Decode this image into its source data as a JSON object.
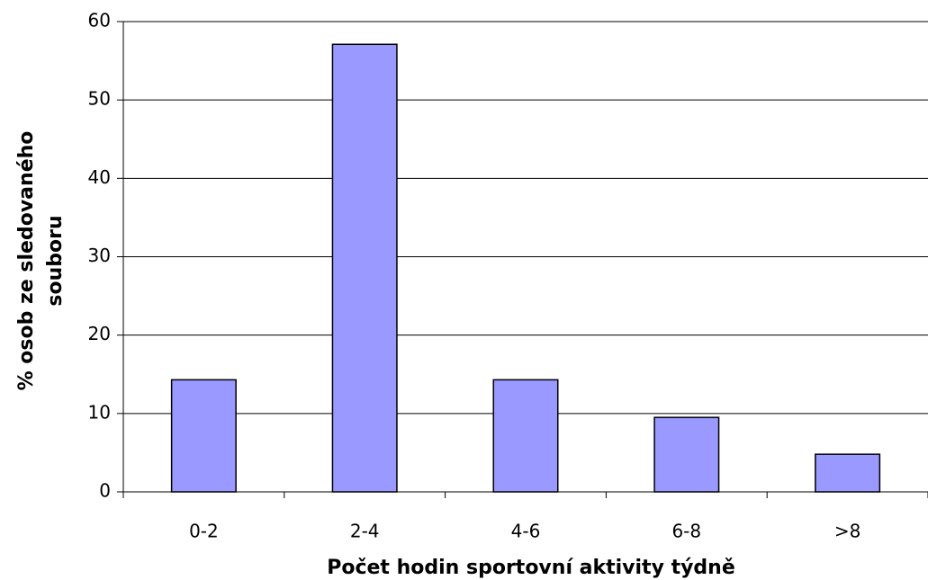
{
  "chart_data": {
    "type": "bar",
    "categories": [
      "0-2",
      "2-4",
      "4-6",
      "6-8",
      ">8"
    ],
    "values": [
      14.3,
      57.1,
      14.3,
      9.5,
      4.8
    ],
    "color": "#9999ff",
    "ylim": [
      0,
      60
    ],
    "yticks": [
      0,
      10,
      20,
      30,
      40,
      50,
      60
    ],
    "grid": true,
    "xlabel": "Počet hodin sportovní aktivity týdně",
    "ylabel": [
      "% osob ze sledovaného",
      "souboru"
    ]
  }
}
